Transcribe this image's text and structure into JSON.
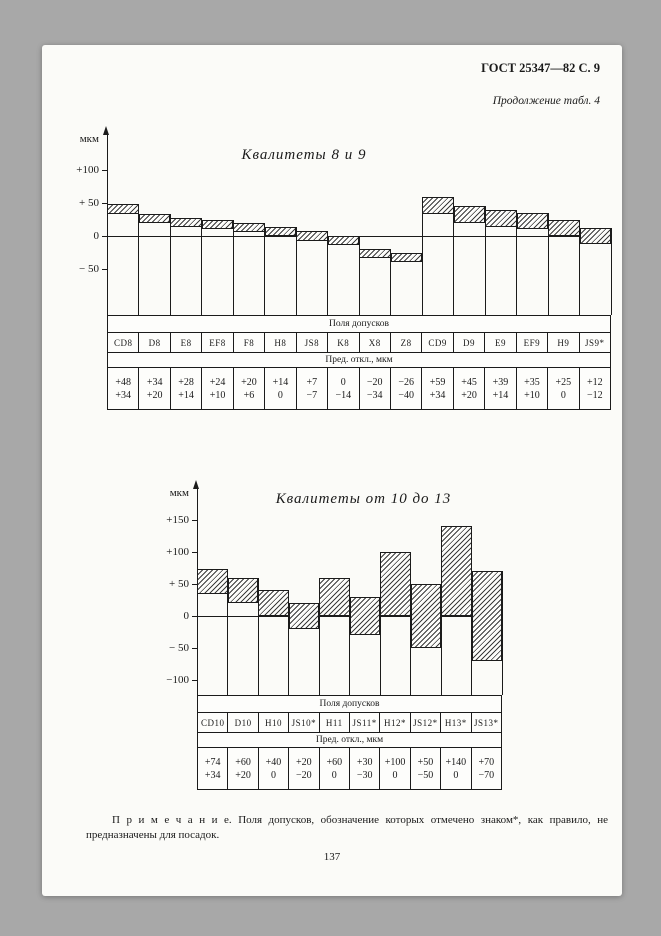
{
  "page": {
    "header": "ГОСТ 25347—82 С. 9",
    "continuation": "Продолжение табл. 4",
    "note": {
      "label": "П р и м е ч а н и е.",
      "text": "Поля допусков, обозначение которых отмечено знаком*, как правило, не предназначены для посадок."
    },
    "page_number": "137"
  },
  "chart_data": [
    {
      "type": "bar",
      "subtype": "tolerance-zones",
      "title": "Квалитеты 8 и 9",
      "ylabel": "мкм",
      "table_header": "Поля допусков",
      "table_subheader": "Пред. откл., мкм",
      "axis_ticks": [
        {
          "value": 100,
          "label": "+100"
        },
        {
          "value": 50,
          "label": "+ 50"
        },
        {
          "value": 0,
          "label": "0"
        },
        {
          "value": -50,
          "label": "− 50"
        }
      ],
      "ylim": [
        -170,
        110
      ],
      "grid": false,
      "categories": [
        "CD8",
        "D8",
        "E8",
        "EF8",
        "F8",
        "H8",
        "JS8",
        "K8",
        "X8",
        "Z8",
        "CD9",
        "D9",
        "E9",
        "EF9",
        "H9",
        "JS9*"
      ],
      "series": [
        {
          "name": "upper deviation, мкм",
          "values": [
            48,
            34,
            28,
            24,
            20,
            14,
            7,
            0,
            -20,
            -26,
            59,
            45,
            39,
            35,
            25,
            12
          ]
        },
        {
          "name": "lower deviation, мкм",
          "values": [
            34,
            20,
            14,
            10,
            6,
            0,
            -7,
            -14,
            -34,
            -40,
            34,
            20,
            14,
            10,
            0,
            -12
          ]
        }
      ],
      "upper_labels": [
        "+48",
        "+34",
        "+28",
        "+24",
        "+20",
        "+14",
        "+7",
        "0",
        "−20",
        "−26",
        "+59",
        "+45",
        "+39",
        "+35",
        "+25",
        "+12"
      ],
      "lower_labels": [
        "+34",
        "+20",
        "+14",
        "+10",
        "+6",
        "0",
        "−7",
        "−14",
        "−34",
        "−40",
        "+34",
        "+20",
        "+14",
        "+10",
        "0",
        "−12"
      ]
    },
    {
      "type": "bar",
      "subtype": "tolerance-zones",
      "title": "Квалитеты от 10 до 13",
      "ylabel": "мкм",
      "table_header": "Поля допусков",
      "table_subheader": "Пред. откл., мкм",
      "axis_ticks": [
        {
          "value": 150,
          "label": "+150"
        },
        {
          "value": 100,
          "label": "+100"
        },
        {
          "value": 50,
          "label": "+ 50"
        },
        {
          "value": 0,
          "label": "0"
        },
        {
          "value": -50,
          "label": "− 50"
        },
        {
          "value": -100,
          "label": "−100"
        }
      ],
      "ylim": [
        -200,
        165
      ],
      "grid": false,
      "categories": [
        "CD10",
        "D10",
        "H10",
        "JS10*",
        "H11",
        "JS11*",
        "H12*",
        "JS12*",
        "H13*",
        "JS13*"
      ],
      "series": [
        {
          "name": "upper deviation, мкм",
          "values": [
            74,
            60,
            40,
            20,
            60,
            30,
            100,
            50,
            140,
            70
          ]
        },
        {
          "name": "lower deviation, мкм",
          "values": [
            34,
            20,
            0,
            -20,
            0,
            -30,
            0,
            -50,
            0,
            -70
          ]
        }
      ],
      "upper_labels": [
        "+74",
        "+60",
        "+40",
        "+20",
        "+60",
        "+30",
        "+100",
        "+50",
        "+140",
        "+70"
      ],
      "lower_labels": [
        "+34",
        "+20",
        "0",
        "−20",
        "0",
        "−30",
        "0",
        "−50",
        "0",
        "−70"
      ]
    }
  ]
}
